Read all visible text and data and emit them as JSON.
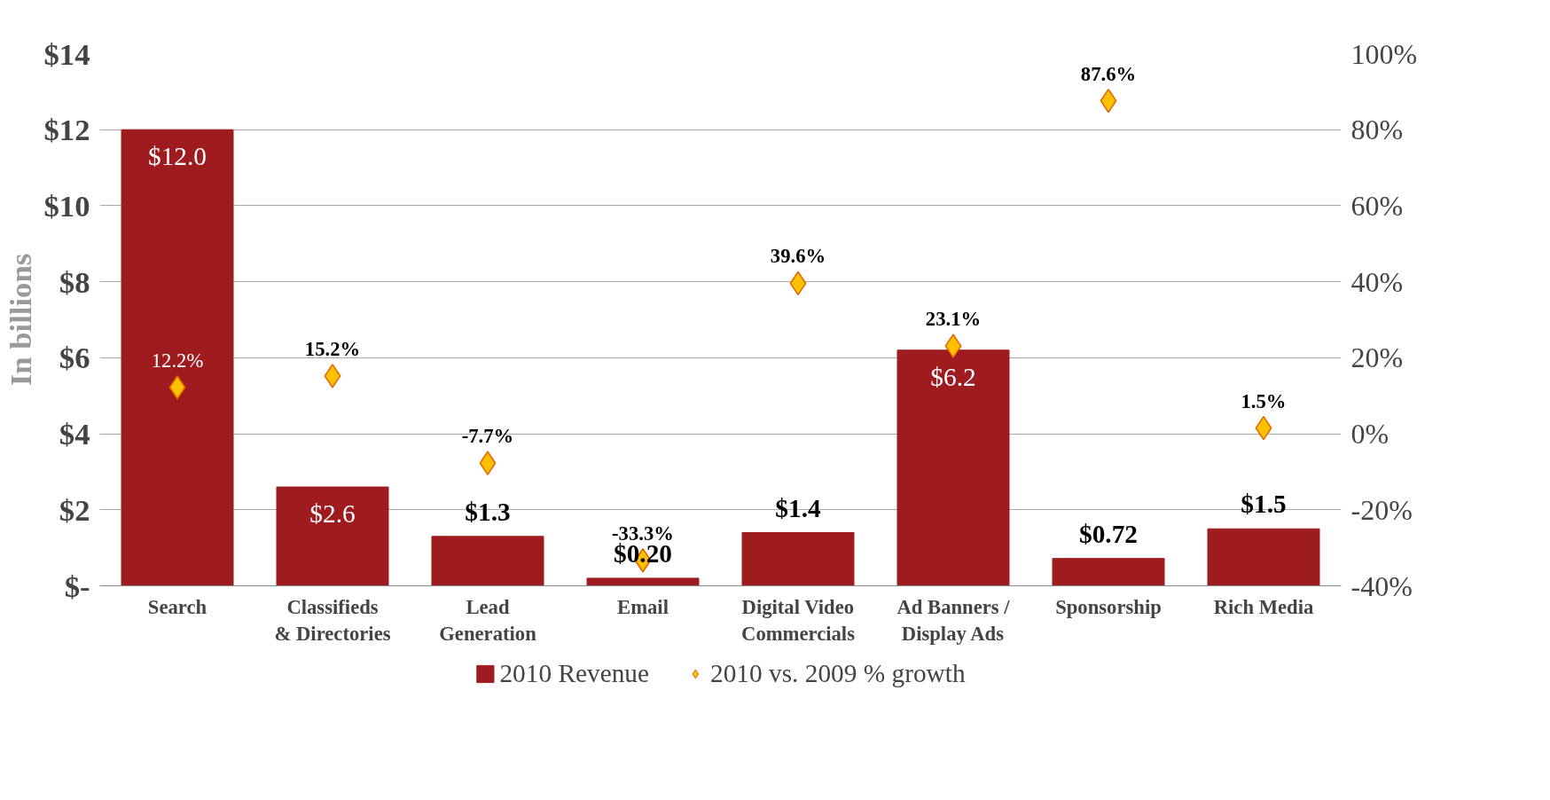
{
  "chart_data": {
    "type": "bar",
    "ylabel": "In billions",
    "categories": [
      "Search",
      "Classifieds & Directories",
      "Lead Generation",
      "Email",
      "Digital Video Commercials",
      "Ad Banners / Display Ads",
      "Sponsorship",
      "Rich Media"
    ],
    "series": [
      {
        "name": "2010 Revenue",
        "color": "#9e1c20",
        "values": [
          12.0,
          2.6,
          1.3,
          0.2,
          1.4,
          6.2,
          0.72,
          1.5
        ],
        "value_labels": [
          "$12.0",
          "$2.6",
          "$1.3",
          "$0.20",
          "$1.4",
          "$6.2",
          "$0.72",
          "$1.5"
        ]
      },
      {
        "name": "2010 vs. 2009 % growth",
        "type": "scatter",
        "axis": "y2",
        "color": "#ffc000",
        "marker": "diamond",
        "values": [
          12.2,
          15.2,
          -7.7,
          -33.3,
          39.6,
          23.1,
          87.6,
          1.5
        ],
        "value_labels": [
          "12.2%",
          "15.2%",
          "-7.7%",
          "-33.3%",
          "39.6%",
          "23.1%",
          "87.6%",
          "1.5%"
        ]
      }
    ],
    "ylim": [
      0,
      14
    ],
    "yticks": [
      {
        "value": 0,
        "label": "$-"
      },
      {
        "value": 2,
        "label": "$2"
      },
      {
        "value": 4,
        "label": "$4"
      },
      {
        "value": 6,
        "label": "$6"
      },
      {
        "value": 8,
        "label": "$8"
      },
      {
        "value": 10,
        "label": "$10"
      },
      {
        "value": 12,
        "label": "$12"
      },
      {
        "value": 14,
        "label": "$14"
      }
    ],
    "y2lim": [
      -40,
      100
    ],
    "y2ticks": [
      {
        "value": -40,
        "label": "-40%"
      },
      {
        "value": -20,
        "label": "-20%"
      },
      {
        "value": 0,
        "label": "0%"
      },
      {
        "value": 20,
        "label": "20%"
      },
      {
        "value": 40,
        "label": "40%"
      },
      {
        "value": 60,
        "label": "60%"
      },
      {
        "value": 80,
        "label": "80%"
      },
      {
        "value": 100,
        "label": "100%"
      }
    ],
    "grid": "y",
    "legend": "bottom"
  }
}
